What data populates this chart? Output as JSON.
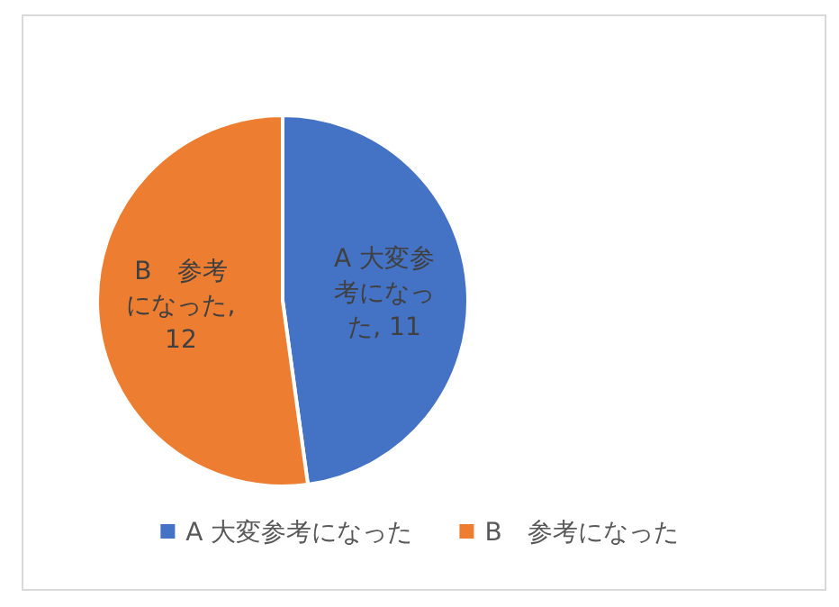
{
  "chart_data": {
    "type": "pie",
    "categories": [
      "A 大変参考になった",
      "B　参考になった"
    ],
    "values": [
      11,
      12
    ],
    "colors": [
      "#4472c4",
      "#ed7d31"
    ],
    "value_labels": [
      "A 大変参考になった, 11",
      "B　参考になった, 12"
    ],
    "legend": "bottom"
  }
}
